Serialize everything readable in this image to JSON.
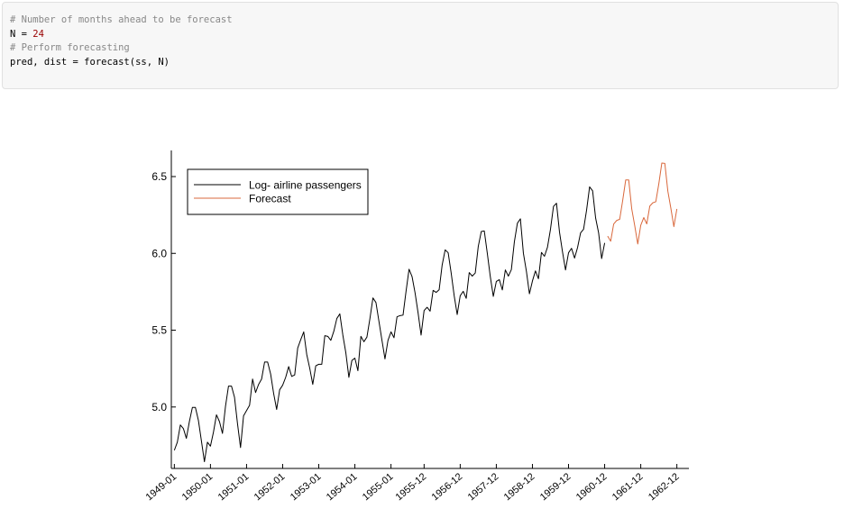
{
  "code_cell": {
    "lines": [
      {
        "comment": "# Number of months ahead to be forecast"
      },
      {
        "pre": "N = ",
        "num": "24"
      },
      {
        "comment": "# Perform forecasting"
      },
      {
        "pre": "pred, dist = forecast(ss, N)"
      }
    ]
  },
  "chart_data": {
    "type": "line",
    "title": "",
    "xlabel": "",
    "ylabel": "",
    "xlim": [
      "1948-12",
      "1963-04"
    ],
    "ylim": [
      4.6,
      6.67
    ],
    "yticks": [
      5.0,
      5.5,
      6.0,
      6.5
    ],
    "xtick_labels": [
      "1949-01",
      "1950-01",
      "1951-01",
      "1952-01",
      "1953-01",
      "1954-01",
      "1955-01",
      "1955-12",
      "1956-12",
      "1957-12",
      "1958-12",
      "1959-12",
      "1960-12",
      "1961-12",
      "1962-12"
    ],
    "xtick_positions": [
      "1949-01",
      "1950-01",
      "1951-01",
      "1952-01",
      "1953-01",
      "1954-01",
      "1955-01",
      "1955-12",
      "1956-12",
      "1957-12",
      "1958-12",
      "1959-12",
      "1960-12",
      "1961-12",
      "1962-12"
    ],
    "grid": false,
    "legend_position": "top-left",
    "series": [
      {
        "name": "Log- airline passengers",
        "color": "#000000",
        "start": "1949-01",
        "values": [
          4.718,
          4.771,
          4.883,
          4.86,
          4.796,
          4.905,
          4.997,
          4.997,
          4.913,
          4.779,
          4.644,
          4.771,
          4.745,
          4.836,
          4.949,
          4.905,
          4.828,
          5.004,
          5.136,
          5.136,
          5.063,
          4.89,
          4.736,
          4.942,
          4.977,
          5.011,
          5.182,
          5.094,
          5.147,
          5.182,
          5.293,
          5.293,
          5.215,
          5.088,
          4.984,
          5.112,
          5.142,
          5.193,
          5.263,
          5.199,
          5.209,
          5.384,
          5.438,
          5.489,
          5.342,
          5.252,
          5.147,
          5.268,
          5.278,
          5.278,
          5.464,
          5.46,
          5.434,
          5.493,
          5.576,
          5.606,
          5.468,
          5.352,
          5.193,
          5.303,
          5.318,
          5.236,
          5.46,
          5.425,
          5.455,
          5.576,
          5.71,
          5.68,
          5.557,
          5.434,
          5.313,
          5.434,
          5.489,
          5.451,
          5.587,
          5.595,
          5.598,
          5.753,
          5.897,
          5.849,
          5.743,
          5.613,
          5.468,
          5.628,
          5.649,
          5.624,
          5.759,
          5.746,
          5.763,
          5.924,
          6.023,
          6.004,
          5.872,
          5.724,
          5.602,
          5.724,
          5.753,
          5.707,
          5.875,
          5.852,
          5.872,
          6.045,
          6.142,
          6.146,
          6.001,
          5.849,
          5.72,
          5.817,
          5.829,
          5.762,
          5.892,
          5.852,
          5.894,
          6.075,
          6.196,
          6.225,
          6.001,
          5.883,
          5.737,
          5.82,
          5.886,
          5.835,
          6.006,
          5.981,
          6.04,
          6.157,
          6.306,
          6.326,
          6.138,
          6.009,
          5.892,
          6.004,
          6.033,
          5.969,
          6.038,
          6.133,
          6.157,
          6.282,
          6.433,
          6.407,
          6.23,
          6.133,
          5.966,
          6.068
        ]
      },
      {
        "name": "Forecast",
        "color": "#d9683c",
        "start": "1961-01",
        "values": [
          6.112,
          6.079,
          6.191,
          6.214,
          6.222,
          6.345,
          6.478,
          6.478,
          6.29,
          6.18,
          6.061,
          6.183,
          6.233,
          6.192,
          6.308,
          6.329,
          6.336,
          6.453,
          6.588,
          6.586,
          6.405,
          6.294,
          6.174,
          6.289
        ]
      }
    ]
  }
}
